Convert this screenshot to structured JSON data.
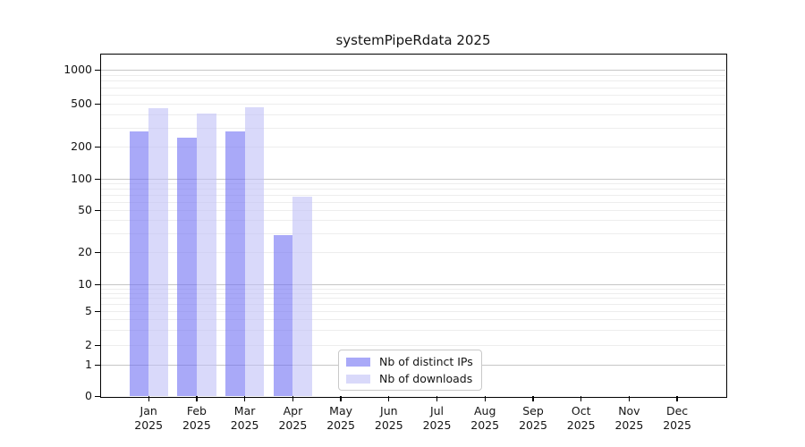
{
  "chart_data": {
    "type": "bar",
    "title": "systemPipeRdata 2025",
    "x_axis": {
      "categories": [
        {
          "month": "Jan",
          "year": "2025"
        },
        {
          "month": "Feb",
          "year": "2025"
        },
        {
          "month": "Mar",
          "year": "2025"
        },
        {
          "month": "Apr",
          "year": "2025"
        },
        {
          "month": "May",
          "year": "2025"
        },
        {
          "month": "Jun",
          "year": "2025"
        },
        {
          "month": "Jul",
          "year": "2025"
        },
        {
          "month": "Aug",
          "year": "2025"
        },
        {
          "month": "Sep",
          "year": "2025"
        },
        {
          "month": "Oct",
          "year": "2025"
        },
        {
          "month": "Nov",
          "year": "2025"
        },
        {
          "month": "Dec",
          "year": "2025"
        }
      ]
    },
    "y_axis": {
      "scale": "log-with-zero-baseline",
      "ticks": [
        0,
        1,
        2,
        5,
        10,
        20,
        50,
        100,
        200,
        500,
        1000
      ],
      "major_gridline_values": [
        1,
        10,
        100,
        1000
      ],
      "minor_gridline_decades": [
        1,
        10,
        100
      ],
      "minor_gridline_multipliers": [
        2,
        3,
        4,
        5,
        6,
        7,
        8,
        9
      ],
      "ylim": [
        0,
        1400
      ]
    },
    "series": [
      {
        "name": "Nb of distinct IPs",
        "color": "rgba(112,112,243,0.6)",
        "solid_color_on_white": "#a9a9f8",
        "values": [
          275,
          242,
          276,
          29,
          null,
          null,
          null,
          null,
          null,
          null,
          null,
          null
        ]
      },
      {
        "name": "Nb of downloads",
        "color": "rgba(192,192,247,0.6)",
        "solid_color_on_white": "#d9d9fa",
        "values": [
          453,
          403,
          465,
          68,
          null,
          null,
          null,
          null,
          null,
          null,
          null,
          null
        ]
      }
    ],
    "legend_position": "inside-bottom-center",
    "grid": true
  },
  "colors": {
    "background": "#ffffff",
    "axis": "#000000",
    "text": "#151515",
    "major_grid": "#c6c6c6",
    "minor_grid": "#ededed",
    "legend_border": "#c9c9c9"
  }
}
